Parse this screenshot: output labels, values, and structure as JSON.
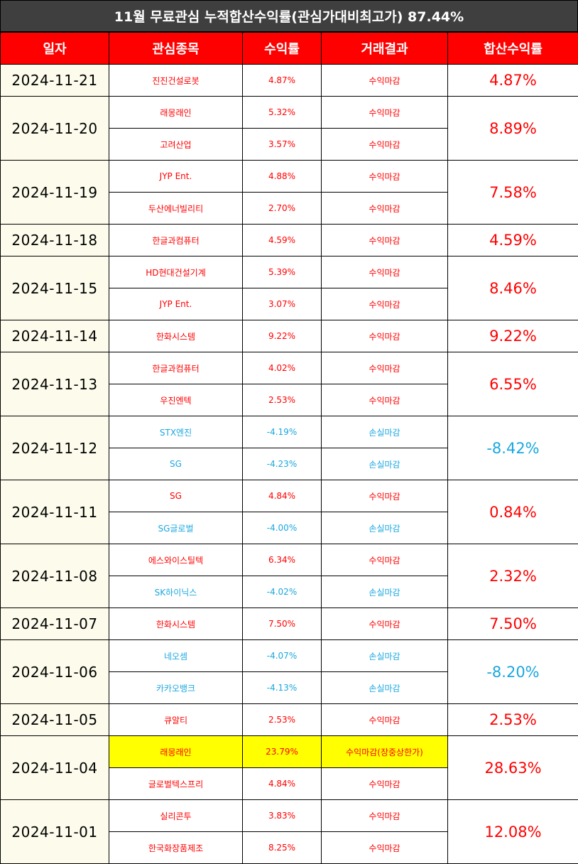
{
  "title": "11월 무료관심 누적합산수익률(관심가대비최고가) 87.44%",
  "headers": [
    "일자",
    "관심종목",
    "수익률",
    "거래결과",
    "합산수익률"
  ],
  "colors": {
    "positive": "#ff0000",
    "negative": "#1aa7e0",
    "header_bg": "#ff0000",
    "title_bg": "#3f3f3f",
    "date_bg": "#fdfbec",
    "highlight": "#ffff00"
  },
  "groups": [
    {
      "date": "2024-11-21",
      "total": "4.87%",
      "total_sign": "pos",
      "rows": [
        {
          "stock": "진진건설로봇",
          "rate": "4.87%",
          "result": "수익마감",
          "sign": "pos"
        }
      ]
    },
    {
      "date": "2024-11-20",
      "total": "8.89%",
      "total_sign": "pos",
      "rows": [
        {
          "stock": "래몽래인",
          "rate": "5.32%",
          "result": "수익마감",
          "sign": "pos"
        },
        {
          "stock": "고려산업",
          "rate": "3.57%",
          "result": "수익마감",
          "sign": "pos"
        }
      ]
    },
    {
      "date": "2024-11-19",
      "total": "7.58%",
      "total_sign": "pos",
      "rows": [
        {
          "stock": "JYP Ent.",
          "rate": "4.88%",
          "result": "수익마감",
          "sign": "pos"
        },
        {
          "stock": "두산에너빌리티",
          "rate": "2.70%",
          "result": "수익마감",
          "sign": "pos"
        }
      ]
    },
    {
      "date": "2024-11-18",
      "total": "4.59%",
      "total_sign": "pos",
      "rows": [
        {
          "stock": "한글과컴퓨터",
          "rate": "4.59%",
          "result": "수익마감",
          "sign": "pos"
        }
      ]
    },
    {
      "date": "2024-11-15",
      "total": "8.46%",
      "total_sign": "pos",
      "rows": [
        {
          "stock": "HD현대건설기계",
          "rate": "5.39%",
          "result": "수익마감",
          "sign": "pos"
        },
        {
          "stock": "JYP Ent.",
          "rate": "3.07%",
          "result": "수익마감",
          "sign": "pos"
        }
      ]
    },
    {
      "date": "2024-11-14",
      "total": "9.22%",
      "total_sign": "pos",
      "rows": [
        {
          "stock": "한화시스템",
          "rate": "9.22%",
          "result": "수익마감",
          "sign": "pos"
        }
      ]
    },
    {
      "date": "2024-11-13",
      "total": "6.55%",
      "total_sign": "pos",
      "rows": [
        {
          "stock": "한글과컴퓨터",
          "rate": "4.02%",
          "result": "수익마감",
          "sign": "pos"
        },
        {
          "stock": "우진엔텍",
          "rate": "2.53%",
          "result": "수익마감",
          "sign": "pos"
        }
      ]
    },
    {
      "date": "2024-11-12",
      "total": "-8.42%",
      "total_sign": "neg",
      "rows": [
        {
          "stock": "STX엔진",
          "rate": "-4.19%",
          "result": "손실마감",
          "sign": "neg"
        },
        {
          "stock": "SG",
          "rate": "-4.23%",
          "result": "손실마감",
          "sign": "neg"
        }
      ]
    },
    {
      "date": "2024-11-11",
      "total": "0.84%",
      "total_sign": "pos",
      "rows": [
        {
          "stock": "SG",
          "rate": "4.84%",
          "result": "수익마감",
          "sign": "pos"
        },
        {
          "stock": "SG글로벌",
          "rate": "-4.00%",
          "result": "손실마감",
          "sign": "neg"
        }
      ]
    },
    {
      "date": "2024-11-08",
      "total": "2.32%",
      "total_sign": "pos",
      "rows": [
        {
          "stock": "에스와이스틸텍",
          "rate": "6.34%",
          "result": "수익마감",
          "sign": "pos"
        },
        {
          "stock": "SK하이닉스",
          "rate": "-4.02%",
          "result": "손실마감",
          "sign": "neg"
        }
      ]
    },
    {
      "date": "2024-11-07",
      "total": "7.50%",
      "total_sign": "pos",
      "rows": [
        {
          "stock": "한화시스템",
          "rate": "7.50%",
          "result": "수익마감",
          "sign": "pos"
        }
      ]
    },
    {
      "date": "2024-11-06",
      "total": "-8.20%",
      "total_sign": "neg",
      "rows": [
        {
          "stock": "네오셈",
          "rate": "-4.07%",
          "result": "손실마감",
          "sign": "neg"
        },
        {
          "stock": "카카오뱅크",
          "rate": "-4.13%",
          "result": "손실마감",
          "sign": "neg"
        }
      ]
    },
    {
      "date": "2024-11-05",
      "total": "2.53%",
      "total_sign": "pos",
      "rows": [
        {
          "stock": "큐알티",
          "rate": "2.53%",
          "result": "수익마감",
          "sign": "pos"
        }
      ]
    },
    {
      "date": "2024-11-04",
      "total": "28.63%",
      "total_sign": "pos",
      "rows": [
        {
          "stock": "래몽래인",
          "rate": "23.79%",
          "result": "수익마감(장중상한가)",
          "sign": "pos",
          "highlight": true
        },
        {
          "stock": "글로벌텍스프리",
          "rate": "4.84%",
          "result": "수익마감",
          "sign": "pos"
        }
      ]
    },
    {
      "date": "2024-11-01",
      "total": "12.08%",
      "total_sign": "pos",
      "rows": [
        {
          "stock": "실리콘투",
          "rate": "3.83%",
          "result": "수익마감",
          "sign": "pos"
        },
        {
          "stock": "한국화장품제조",
          "rate": "8.25%",
          "result": "수익마감",
          "sign": "pos"
        }
      ]
    }
  ]
}
